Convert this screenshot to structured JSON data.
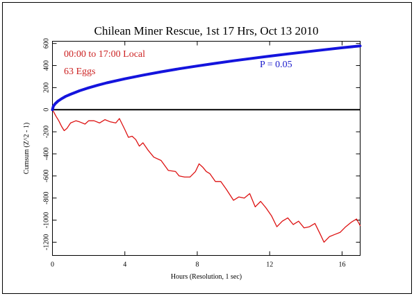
{
  "chart_data": {
    "type": "line",
    "title": "Chilean Miner Rescue, 1st 17 Hrs, Oct 13 2010",
    "xlabel": "Hours (Resolution, 1 sec)",
    "ylabel": "Cumsum (Z^2 - 1)",
    "xlim": [
      0,
      17
    ],
    "ylim": [
      -1320,
      620
    ],
    "xticks": [
      0,
      4,
      8,
      12,
      16
    ],
    "yticks": [
      600,
      400,
      200,
      0,
      -200,
      -400,
      -600,
      -800,
      -1000,
      -1200
    ],
    "grid": false,
    "zero_line": true,
    "annotations": [
      {
        "text": "00:00 to 17:00 Local",
        "color": "#cc2222"
      },
      {
        "text": "63 Eggs",
        "color": "#cc2222"
      },
      {
        "text": "P = 0.05",
        "color": "#1a1acc"
      }
    ],
    "series": [
      {
        "role": "cumsum",
        "color": "#dd1111",
        "x": [
          0,
          0.1,
          0.2,
          0.35,
          0.5,
          0.65,
          0.8,
          1.0,
          1.3,
          1.5,
          1.8,
          2.0,
          2.3,
          2.6,
          2.9,
          3.2,
          3.5,
          3.7,
          4.0,
          4.2,
          4.4,
          4.6,
          4.8,
          5.0,
          5.3,
          5.6,
          6.0,
          6.4,
          6.8,
          7.0,
          7.3,
          7.6,
          7.9,
          8.1,
          8.3,
          8.5,
          8.7,
          9.0,
          9.3,
          9.6,
          10.0,
          10.3,
          10.6,
          10.9,
          11.2,
          11.5,
          11.8,
          12.1,
          12.4,
          12.7,
          13.0,
          13.3,
          13.6,
          13.9,
          14.2,
          14.5,
          14.8,
          15.0,
          15.3,
          15.6,
          15.9,
          16.2,
          16.5,
          16.8,
          17.0
        ],
        "y": [
          0,
          -30,
          -60,
          -100,
          -150,
          -190,
          -170,
          -120,
          -100,
          -110,
          -130,
          -100,
          -100,
          -120,
          -90,
          -110,
          -120,
          -80,
          -180,
          -250,
          -240,
          -270,
          -330,
          -300,
          -370,
          -430,
          -460,
          -550,
          -560,
          -600,
          -610,
          -610,
          -560,
          -490,
          -520,
          -560,
          -580,
          -650,
          -650,
          -720,
          -820,
          -790,
          -800,
          -760,
          -880,
          -830,
          -890,
          -960,
          -1060,
          -1010,
          -980,
          -1040,
          -1010,
          -1070,
          -1060,
          -1030,
          -1130,
          -1200,
          -1150,
          -1130,
          -1110,
          -1060,
          -1020,
          -990,
          -1050
        ]
      },
      {
        "role": "p-0.05-envelope",
        "color": "#1414dd",
        "x": [
          0,
          0.05,
          0.15,
          0.3,
          0.5,
          0.75,
          1,
          1.5,
          2,
          2.5,
          3,
          4,
          5,
          6,
          7,
          8,
          9,
          10,
          11,
          12,
          13,
          14,
          15,
          16,
          17
        ],
        "y": [
          0,
          32,
          54,
          77,
          99,
          122,
          140,
          172,
          198,
          222,
          243,
          280,
          313,
          343,
          371,
          396,
          420,
          443,
          464,
          485,
          505,
          524,
          543,
          561,
          578
        ]
      }
    ]
  }
}
